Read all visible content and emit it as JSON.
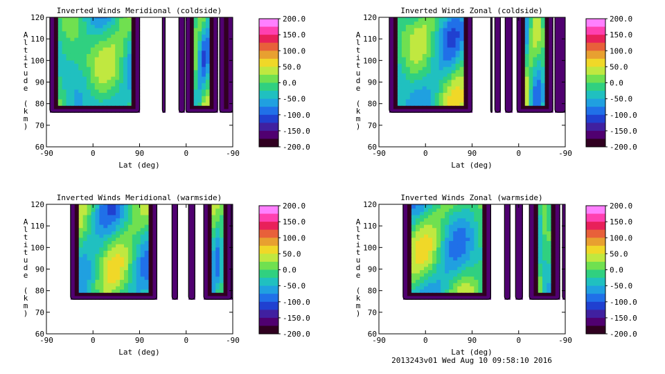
{
  "footer": "2013243v01 Wed Aug 10 09:58:10 2016",
  "colorbar": {
    "ticks": [
      "200.0",
      "150.0",
      "100.0",
      "50.0",
      "0.0",
      "-50.0",
      "-100.0",
      "-150.0",
      "-200.0"
    ],
    "colors": [
      "#ff80ff",
      "#ff40b0",
      "#e8205a",
      "#e8603a",
      "#e8a030",
      "#f0d828",
      "#c0e840",
      "#70e050",
      "#30d080",
      "#20c0c0",
      "#20a0e0",
      "#2070e8",
      "#2040d0",
      "#4020a0",
      "#500070",
      "#300020"
    ]
  },
  "chart_data": [
    {
      "type": "heatmap",
      "title": "Inverted Winds Meridional (coldside)",
      "xlabel": "Lat (deg)",
      "ylabel": "Altitude (km)",
      "x_tick_labels": [
        "-90",
        "0",
        "90",
        "0",
        "-90"
      ],
      "y_ticks": [
        60,
        70,
        80,
        90,
        100,
        110,
        120
      ],
      "ylim": [
        60,
        120
      ],
      "color_range": [
        -200,
        200
      ],
      "segments": [
        [
          -85,
          45
        ],
        [
          78,
          82
        ],
        [
          102,
          110
        ],
        [
          112,
          158
        ],
        [
          161,
          180
        ]
      ],
      "contour_lines": true
    },
    {
      "type": "heatmap",
      "title": "Inverted Winds Zonal (coldside)",
      "xlabel": "Lat (deg)",
      "ylabel": "Altitude (km)",
      "x_tick_labels": [
        "-90",
        "0",
        "90",
        "0",
        "-90"
      ],
      "y_ticks": [
        60,
        70,
        80,
        90,
        100,
        110,
        120
      ],
      "ylim": [
        60,
        120
      ],
      "color_range": [
        -200,
        200
      ],
      "segments": [
        [
          -75,
          45
        ],
        [
          72,
          74
        ],
        [
          78,
          86
        ],
        [
          93,
          103
        ],
        [
          110,
          162
        ],
        [
          165,
          180
        ]
      ],
      "contour_lines": true
    },
    {
      "type": "heatmap",
      "title": "Inverted Winds Meridional (warmside)",
      "xlabel": "Lat (deg)",
      "ylabel": "Altitude (km)",
      "x_tick_labels": [
        "-90",
        "0",
        "90",
        "0",
        "-90"
      ],
      "y_ticks": [
        60,
        70,
        80,
        90,
        100,
        110,
        120
      ],
      "ylim": [
        60,
        120
      ],
      "color_range": [
        -200,
        200
      ],
      "segments": [
        [
          -55,
          70
        ],
        [
          92,
          100
        ],
        [
          116,
          125
        ],
        [
          138,
          178
        ],
        [
          178,
          192
        ]
      ],
      "contour_lines": true
    },
    {
      "type": "heatmap",
      "title": "Inverted Winds Zonal (warmside)",
      "xlabel": "Lat (deg)",
      "ylabel": "Altitude (km)",
      "x_tick_labels": [
        "-90",
        "0",
        "90",
        "0",
        "-90"
      ],
      "y_ticks": [
        60,
        70,
        80,
        90,
        100,
        110,
        120
      ],
      "ylim": [
        60,
        120
      ],
      "color_range": [
        -200,
        200
      ],
      "segments": [
        [
          -55,
          72
        ],
        [
          92,
          100
        ],
        [
          108,
          118
        ],
        [
          128,
          172
        ],
        [
          176,
          192
        ]
      ],
      "contour_lines": true
    }
  ]
}
